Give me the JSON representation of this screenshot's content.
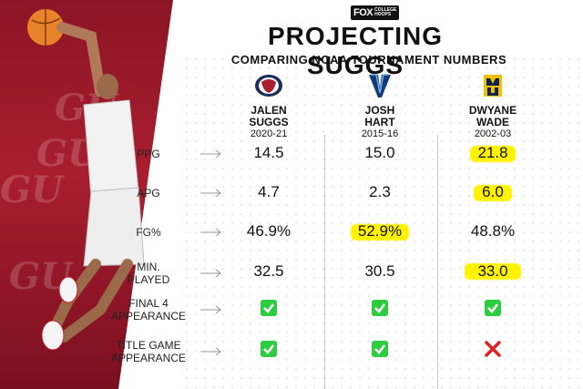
{
  "brand": {
    "fox": "FOX",
    "sub_line1": "COLLEGE",
    "sub_line2": "HOOPS"
  },
  "title": "PROJECTING SUGGS",
  "subtitle": "COMPARING NCAA TOURNAMENT NUMBERS",
  "watermark": "GU",
  "players": [
    {
      "name_line1": "JALEN",
      "name_line2": "SUGGS",
      "years": "2020-21",
      "logo": "gonzaga-bulldog-logo"
    },
    {
      "name_line1": "JOSH",
      "name_line2": "HART",
      "years": "2015-16",
      "logo": "villanova-v-logo"
    },
    {
      "name_line1": "DWYANE",
      "name_line2": "WADE",
      "years": "2002-03",
      "logo": "marquette-mu-logo"
    }
  ],
  "rows": [
    {
      "label_line1": "PPG",
      "label_line2": "",
      "values": [
        "14.5",
        "15.0",
        "21.8"
      ],
      "highlight": [
        false,
        false,
        true
      ]
    },
    {
      "label_line1": "APG",
      "label_line2": "",
      "values": [
        "4.7",
        "2.3",
        "6.0"
      ],
      "highlight": [
        false,
        false,
        true
      ]
    },
    {
      "label_line1": "FG%",
      "label_line2": "",
      "values": [
        "46.9%",
        "52.9%",
        "48.8%"
      ],
      "highlight": [
        false,
        true,
        false
      ]
    },
    {
      "label_line1": "MIN.",
      "label_line2": "PLAYED",
      "values": [
        "32.5",
        "30.5",
        "33.0"
      ],
      "highlight": [
        false,
        false,
        true
      ]
    },
    {
      "label_line1": "FINAL 4",
      "label_line2": "APPEARANCE",
      "values": [
        "check",
        "check",
        "check"
      ]
    },
    {
      "label_line1": "TITLE GAME",
      "label_line2": "APPEARANCE",
      "values": [
        "check",
        "check",
        "x"
      ]
    }
  ],
  "colors": {
    "gonzaga_red": "#a81e2f",
    "highlight": "#fff200",
    "check_green": "#2ecc40",
    "x_red": "#e02020"
  }
}
